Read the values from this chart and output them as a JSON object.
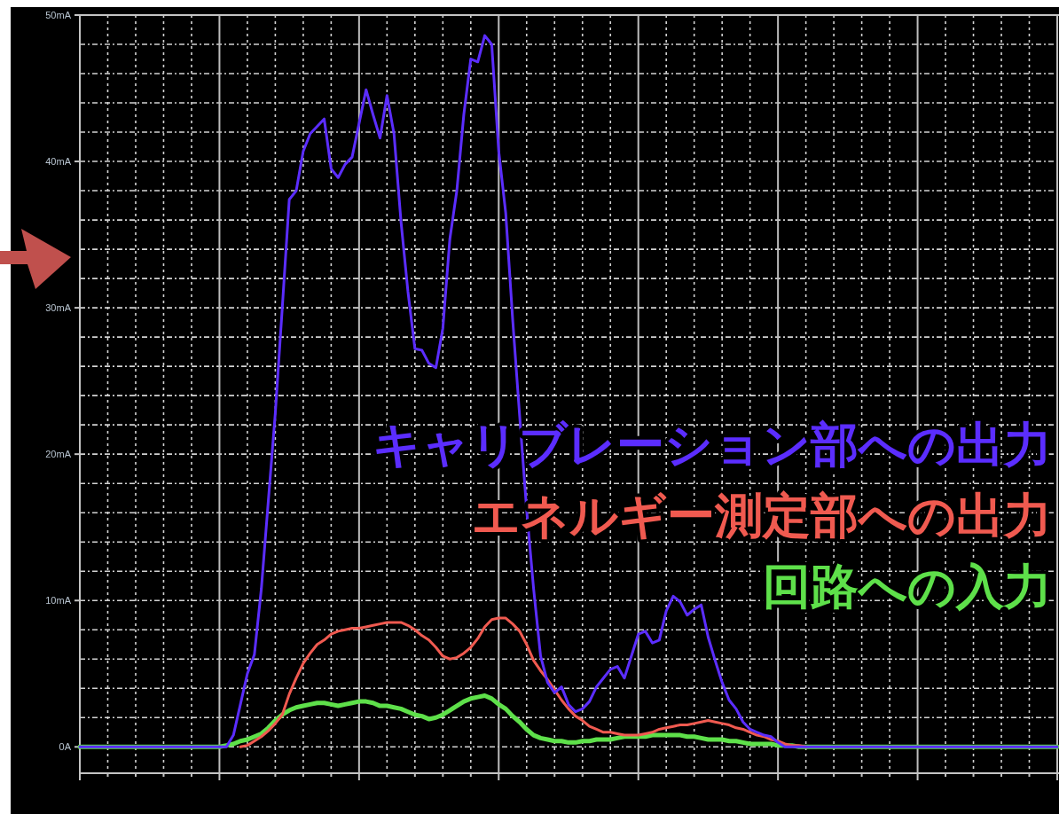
{
  "chart_data": {
    "type": "line",
    "categories": [
      null,
      null,
      null,
      null,
      null,
      null,
      null,
      null,
      null,
      null,
      null,
      null,
      null,
      null,
      null,
      null,
      null,
      null,
      null,
      null,
      null,
      null,
      null,
      null,
      null,
      null,
      null,
      null,
      null,
      null,
      null,
      null,
      null,
      null,
      null,
      null,
      null,
      null,
      null,
      null,
      null,
      null,
      null,
      null,
      null,
      null,
      null,
      null,
      null,
      null,
      null,
      null,
      null,
      null,
      null,
      null,
      null,
      null,
      null,
      null,
      null,
      null,
      null,
      null,
      null,
      null,
      null,
      null,
      null,
      null,
      null,
      null,
      null,
      null,
      null,
      null,
      null,
      null,
      null,
      null,
      null,
      null,
      null,
      null,
      null,
      null,
      null,
      null,
      null,
      null,
      null,
      null,
      null,
      null,
      null,
      null,
      null,
      null,
      null,
      null,
      null,
      null,
      null,
      null,
      null,
      null,
      null,
      null,
      null,
      null,
      null,
      null,
      null,
      null,
      null,
      null,
      null,
      null,
      null,
      null,
      null,
      null,
      null,
      null,
      null,
      null,
      null,
      null,
      null,
      null,
      null,
      null,
      null,
      null,
      null,
      null,
      null,
      null,
      null,
      null,
      null
    ],
    "ylim": [
      -1.8,
      50
    ],
    "yticks": [
      {
        "value": 0,
        "label": "0A"
      },
      {
        "value": 2,
        "label": null
      },
      {
        "value": 4,
        "label": null
      },
      {
        "value": 6,
        "label": null
      },
      {
        "value": 8,
        "label": null
      },
      {
        "value": 10,
        "label": "10mA"
      },
      {
        "value": 12,
        "label": null
      },
      {
        "value": 14,
        "label": null
      },
      {
        "value": 16,
        "label": null
      },
      {
        "value": 18,
        "label": null
      },
      {
        "value": 20,
        "label": "20mA"
      },
      {
        "value": 22,
        "label": null
      },
      {
        "value": 24,
        "label": null
      },
      {
        "value": 26,
        "label": null
      },
      {
        "value": 28,
        "label": null
      },
      {
        "value": 30,
        "label": "30mA"
      },
      {
        "value": 32,
        "label": null
      },
      {
        "value": 34,
        "label": null
      },
      {
        "value": 36,
        "label": null
      },
      {
        "value": 38,
        "label": null
      },
      {
        "value": 40,
        "label": "40mA"
      },
      {
        "value": 42,
        "label": null
      },
      {
        "value": 44,
        "label": null
      },
      {
        "value": 46,
        "label": null
      },
      {
        "value": 48,
        "label": null
      },
      {
        "value": 50,
        "label": "50mA"
      }
    ],
    "grid": true,
    "tick_labels": "y",
    "legend": "right",
    "series": [
      {
        "name": "キャリブレーション部への出力",
        "color": "#5b2dff",
        "values": [
          0,
          0,
          0,
          0,
          0,
          0,
          0,
          0,
          0,
          0,
          0,
          0,
          0,
          0,
          0,
          0,
          0,
          0,
          0,
          0,
          0,
          0,
          0.8,
          2.9,
          5.0,
          6.3,
          10.8,
          16.8,
          22.8,
          30.0,
          37.4,
          38.0,
          40.7,
          41.9,
          42.4,
          42.9,
          39.5,
          38.9,
          39.8,
          40.3,
          42.6,
          44.9,
          43.2,
          41.6,
          44.5,
          41.9,
          35.9,
          31.1,
          27.2,
          27.1,
          26.2,
          25.9,
          28.6,
          34.7,
          38.0,
          43.2,
          47.0,
          46.8,
          48.6,
          48.0,
          40.7,
          36.5,
          29.2,
          22.6,
          16.2,
          10.8,
          6.2,
          4.4,
          3.7,
          4.1,
          2.9,
          2.4,
          2.6,
          3.1,
          4.1,
          4.7,
          5.3,
          5.5,
          4.7,
          6.2,
          7.7,
          7.9,
          7.1,
          7.3,
          9.3,
          10.3,
          9.9,
          9.0,
          9.4,
          9.7,
          7.5,
          5.9,
          4.4,
          3.2,
          2.6,
          1.7,
          1.2,
          1.0,
          0.8,
          0.7,
          0.3,
          0,
          0,
          0,
          0,
          0,
          0,
          0,
          0,
          0,
          0,
          0,
          0,
          0,
          0,
          0,
          0,
          0,
          0,
          0,
          0,
          0,
          0,
          0,
          0,
          0,
          0,
          0,
          0,
          0,
          0,
          0,
          0,
          0,
          0,
          0,
          0,
          0,
          0,
          0,
          0
        ]
      },
      {
        "name": "エネルギー測定部への出力",
        "color": "#f05a50",
        "values": [
          null,
          null,
          null,
          null,
          null,
          null,
          null,
          null,
          null,
          null,
          null,
          null,
          null,
          null,
          null,
          null,
          null,
          null,
          null,
          null,
          null,
          null,
          null,
          0,
          0.1,
          0.4,
          0.7,
          1.1,
          1.6,
          2.2,
          3.6,
          4.7,
          5.7,
          6.4,
          7.0,
          7.3,
          7.7,
          7.9,
          8.0,
          8.1,
          8.1,
          8.2,
          8.3,
          8.4,
          8.5,
          8.5,
          8.5,
          8.3,
          8.0,
          7.6,
          7.3,
          6.8,
          6.2,
          6.0,
          6.1,
          6.4,
          6.8,
          7.4,
          8.2,
          8.7,
          8.8,
          8.8,
          8.4,
          7.9,
          7.0,
          5.9,
          5.2,
          4.6,
          3.9,
          3.2,
          2.6,
          2.1,
          1.8,
          1.4,
          1.2,
          1.0,
          1.0,
          0.9,
          0.8,
          0.8,
          0.8,
          0.9,
          1.0,
          1.2,
          1.3,
          1.4,
          1.5,
          1.5,
          1.6,
          1.7,
          1.8,
          1.7,
          1.6,
          1.5,
          1.3,
          1.2,
          1.0,
          0.8,
          0.7,
          0.5,
          0.4,
          0.2,
          0.1,
          0.1,
          0,
          null,
          null,
          null,
          null,
          null,
          null,
          null,
          null,
          null,
          null,
          null,
          null,
          null,
          null,
          null,
          null,
          null,
          null,
          null,
          null,
          null,
          null,
          null,
          null,
          null,
          null,
          null,
          null,
          null,
          null,
          null,
          null,
          null,
          null,
          null,
          null
        ]
      },
      {
        "name": "回路への入力",
        "color": "#5ee04a",
        "values": [
          0,
          0,
          0,
          0,
          0,
          0,
          0,
          0,
          0,
          0,
          0,
          0,
          0,
          0,
          0,
          0,
          0,
          0,
          0,
          0,
          0,
          0.1,
          0.2,
          0.4,
          0.5,
          0.7,
          0.9,
          1.3,
          1.8,
          2.2,
          2.5,
          2.7,
          2.8,
          2.9,
          3.0,
          3.0,
          2.9,
          2.8,
          2.9,
          3.0,
          3.1,
          3.1,
          3.0,
          2.8,
          2.8,
          2.7,
          2.6,
          2.4,
          2.2,
          2.1,
          1.9,
          2.0,
          2.2,
          2.5,
          2.8,
          3.1,
          3.3,
          3.4,
          3.5,
          3.3,
          2.9,
          2.6,
          2.1,
          1.7,
          1.2,
          0.8,
          0.6,
          0.5,
          0.4,
          0.4,
          0.3,
          0.3,
          0.4,
          0.4,
          0.5,
          0.5,
          0.5,
          0.6,
          0.7,
          0.7,
          0.7,
          0.7,
          0.8,
          0.8,
          0.8,
          0.8,
          0.8,
          0.7,
          0.7,
          0.6,
          0.5,
          0.5,
          0.5,
          0.4,
          0.4,
          0.3,
          0.2,
          0.2,
          0.2,
          0.2,
          0.1,
          0.1,
          0.1,
          0,
          0,
          0,
          0,
          0,
          0,
          0,
          0,
          0,
          0,
          0,
          0,
          0,
          0,
          0,
          0,
          0,
          0,
          0,
          0,
          0,
          0,
          0,
          0,
          0,
          0,
          0,
          0,
          0,
          0,
          0,
          0,
          0,
          0,
          0,
          0,
          0,
          0
        ]
      }
    ]
  }
}
